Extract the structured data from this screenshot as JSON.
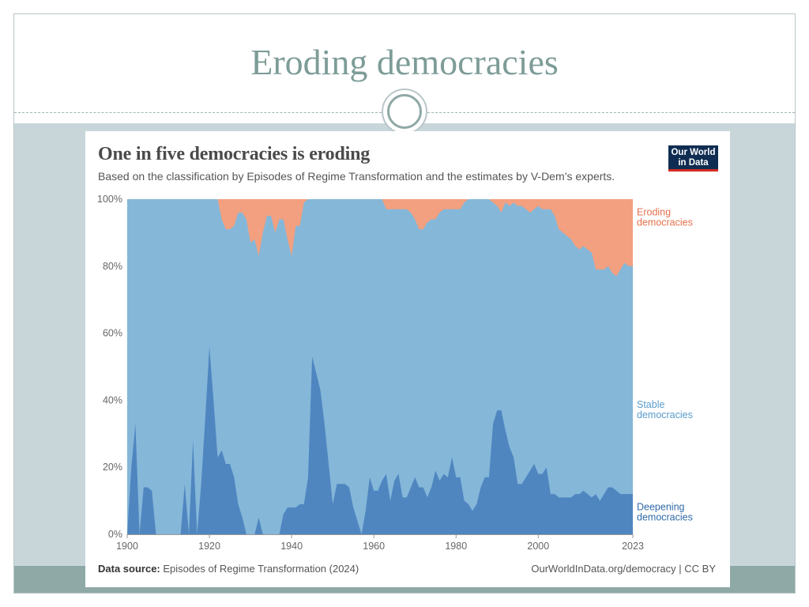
{
  "slide": {
    "title": "Eroding democracies"
  },
  "logo": {
    "line1": "Our World",
    "line2": "in Data"
  },
  "footer": {
    "source_label": "Data source:",
    "source_text": "Episodes of Regime Transformation (2024)",
    "right_text": "OurWorldInData.org/democracy | CC BY"
  },
  "colors": {
    "eroding": "#f2a07f",
    "stable": "#85b7d9",
    "deepening": "#4f86c0",
    "eroding_label": "#e5704b",
    "stable_label": "#5a9ccb",
    "deepening_label": "#2f6aa8"
  },
  "chart_data": {
    "type": "area",
    "stacked": true,
    "title": "One in five democracies is eroding",
    "subtitle": "Based on the classification by Episodes of Regime Transformation and the estimates by V-Dem’s experts.",
    "xlim": [
      1900,
      2023
    ],
    "ylim": [
      0,
      100
    ],
    "x_ticks": [
      1900,
      1920,
      1940,
      1960,
      1980,
      2000,
      2023
    ],
    "y_ticks": [
      0,
      20,
      40,
      60,
      80,
      100
    ],
    "y_tick_labels": [
      "0%",
      "20%",
      "40%",
      "60%",
      "80%",
      "100%"
    ],
    "series": [
      {
        "name": "Deepening democracies",
        "legend_lines": [
          "Deepening",
          "democracies"
        ],
        "points": [
          [
            1900,
            0
          ],
          [
            1901,
            20
          ],
          [
            1902,
            33
          ],
          [
            1903,
            0
          ],
          [
            1904,
            14
          ],
          [
            1905,
            14
          ],
          [
            1906,
            13
          ],
          [
            1907,
            0
          ],
          [
            1913,
            0
          ],
          [
            1914,
            15
          ],
          [
            1915,
            0
          ],
          [
            1916,
            28
          ],
          [
            1917,
            0
          ],
          [
            1918,
            15
          ],
          [
            1919,
            35
          ],
          [
            1920,
            56
          ],
          [
            1921,
            40
          ],
          [
            1922,
            23
          ],
          [
            1923,
            25
          ],
          [
            1924,
            21
          ],
          [
            1925,
            21
          ],
          [
            1926,
            17
          ],
          [
            1927,
            9
          ],
          [
            1928,
            5
          ],
          [
            1929,
            0
          ],
          [
            1931,
            0
          ],
          [
            1932,
            5
          ],
          [
            1933,
            0
          ],
          [
            1937,
            0
          ],
          [
            1938,
            6
          ],
          [
            1939,
            8
          ],
          [
            1941,
            8
          ],
          [
            1942,
            9
          ],
          [
            1943,
            9
          ],
          [
            1944,
            17
          ],
          [
            1945,
            53
          ],
          [
            1946,
            48
          ],
          [
            1947,
            43
          ],
          [
            1948,
            33
          ],
          [
            1949,
            21
          ],
          [
            1950,
            9
          ],
          [
            1951,
            15
          ],
          [
            1953,
            15
          ],
          [
            1954,
            14
          ],
          [
            1955,
            8
          ],
          [
            1956,
            4
          ],
          [
            1957,
            0
          ],
          [
            1958,
            7
          ],
          [
            1959,
            17
          ],
          [
            1960,
            13
          ],
          [
            1961,
            13
          ],
          [
            1962,
            16
          ],
          [
            1963,
            18
          ],
          [
            1964,
            10
          ],
          [
            1965,
            16
          ],
          [
            1966,
            18
          ],
          [
            1967,
            11
          ],
          [
            1968,
            11
          ],
          [
            1969,
            14
          ],
          [
            1970,
            17
          ],
          [
            1971,
            14
          ],
          [
            1972,
            14
          ],
          [
            1973,
            11
          ],
          [
            1974,
            14
          ],
          [
            1975,
            19
          ],
          [
            1976,
            16
          ],
          [
            1977,
            18
          ],
          [
            1978,
            17
          ],
          [
            1979,
            23
          ],
          [
            1980,
            17
          ],
          [
            1981,
            17
          ],
          [
            1982,
            10
          ],
          [
            1983,
            9
          ],
          [
            1984,
            7
          ],
          [
            1985,
            9
          ],
          [
            1986,
            14
          ],
          [
            1987,
            17
          ],
          [
            1988,
            17
          ],
          [
            1989,
            33
          ],
          [
            1990,
            37
          ],
          [
            1991,
            37
          ],
          [
            1992,
            31
          ],
          [
            1993,
            26
          ],
          [
            1994,
            23
          ],
          [
            1995,
            15
          ],
          [
            1996,
            15
          ],
          [
            1997,
            17
          ],
          [
            1998,
            19
          ],
          [
            1999,
            21
          ],
          [
            2000,
            18
          ],
          [
            2001,
            18
          ],
          [
            2002,
            20
          ],
          [
            2003,
            12
          ],
          [
            2004,
            12
          ],
          [
            2005,
            11
          ],
          [
            2006,
            11
          ],
          [
            2007,
            11
          ],
          [
            2008,
            11
          ],
          [
            2009,
            12
          ],
          [
            2010,
            12
          ],
          [
            2011,
            13
          ],
          [
            2012,
            12
          ],
          [
            2013,
            11
          ],
          [
            2014,
            12
          ],
          [
            2015,
            10
          ],
          [
            2016,
            12
          ],
          [
            2017,
            14
          ],
          [
            2018,
            14
          ],
          [
            2019,
            13
          ],
          [
            2020,
            12
          ],
          [
            2021,
            12
          ],
          [
            2022,
            12
          ],
          [
            2023,
            12
          ]
        ]
      },
      {
        "name": "Stable democracies",
        "legend_lines": [
          "Stable",
          "democracies"
        ],
        "note": "fills the remainder between deepening and eroding"
      },
      {
        "name": "Eroding democracies",
        "legend_lines": [
          "Eroding",
          "democracies"
        ],
        "points": [
          [
            1900,
            0
          ],
          [
            1922,
            0
          ],
          [
            1923,
            6
          ],
          [
            1924,
            9
          ],
          [
            1925,
            9
          ],
          [
            1926,
            8
          ],
          [
            1927,
            4
          ],
          [
            1928,
            4
          ],
          [
            1929,
            6
          ],
          [
            1930,
            13
          ],
          [
            1931,
            12
          ],
          [
            1932,
            17
          ],
          [
            1933,
            10
          ],
          [
            1934,
            5
          ],
          [
            1935,
            5
          ],
          [
            1936,
            10
          ],
          [
            1937,
            6
          ],
          [
            1938,
            6
          ],
          [
            1939,
            12
          ],
          [
            1940,
            17
          ],
          [
            1941,
            8
          ],
          [
            1942,
            8
          ],
          [
            1943,
            1
          ],
          [
            1944,
            0
          ],
          [
            1962,
            0
          ],
          [
            1963,
            3
          ],
          [
            1964,
            3
          ],
          [
            1965,
            3
          ],
          [
            1966,
            3
          ],
          [
            1967,
            3
          ],
          [
            1968,
            3
          ],
          [
            1969,
            4
          ],
          [
            1970,
            6
          ],
          [
            1971,
            9
          ],
          [
            1972,
            9
          ],
          [
            1973,
            7
          ],
          [
            1974,
            6
          ],
          [
            1975,
            6
          ],
          [
            1976,
            4
          ],
          [
            1977,
            3
          ],
          [
            1978,
            3
          ],
          [
            1979,
            3
          ],
          [
            1980,
            3
          ],
          [
            1981,
            3
          ],
          [
            1982,
            1
          ],
          [
            1983,
            0
          ],
          [
            1988,
            0
          ],
          [
            1989,
            1
          ],
          [
            1990,
            2
          ],
          [
            1991,
            4
          ],
          [
            1992,
            1
          ],
          [
            1993,
            2
          ],
          [
            1994,
            1
          ],
          [
            1995,
            2
          ],
          [
            1996,
            2
          ],
          [
            1997,
            3
          ],
          [
            1998,
            4
          ],
          [
            1999,
            3
          ],
          [
            2000,
            2
          ],
          [
            2001,
            3
          ],
          [
            2002,
            3
          ],
          [
            2003,
            3
          ],
          [
            2004,
            5
          ],
          [
            2005,
            9
          ],
          [
            2006,
            10
          ],
          [
            2007,
            11
          ],
          [
            2008,
            12
          ],
          [
            2009,
            14
          ],
          [
            2010,
            15
          ],
          [
            2011,
            14
          ],
          [
            2012,
            15
          ],
          [
            2013,
            16
          ],
          [
            2014,
            21
          ],
          [
            2015,
            21
          ],
          [
            2016,
            21
          ],
          [
            2017,
            20
          ],
          [
            2018,
            22
          ],
          [
            2019,
            23
          ],
          [
            2020,
            21
          ],
          [
            2021,
            19
          ],
          [
            2022,
            20
          ],
          [
            2023,
            20
          ]
        ]
      }
    ]
  }
}
